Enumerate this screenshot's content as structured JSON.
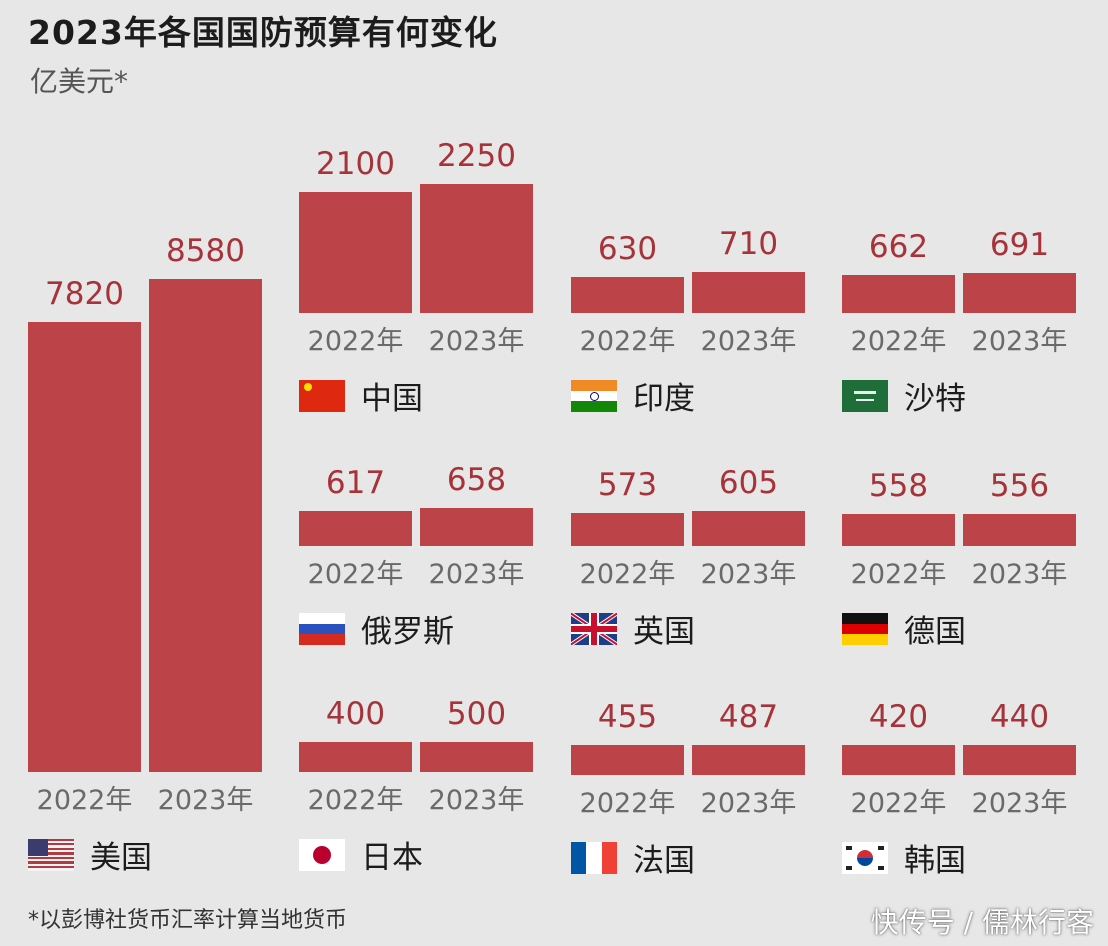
{
  "chart_data": {
    "type": "bar",
    "title": "2023年各国国防预算有何变化",
    "unit": "亿美元*",
    "footnote": "*以彭博社货币汇率计算当地货币",
    "watermark": "快传号 / 儒林行客",
    "bar_color": "#bc4448",
    "categories": [
      "2022年",
      "2023年"
    ],
    "series": [
      {
        "name": "美国",
        "flag": "us-flag",
        "values": [
          7820,
          8580
        ],
        "labels": [
          "7820",
          "8580"
        ]
      },
      {
        "name": "中国",
        "flag": "china-flag",
        "values": [
          2100,
          2250
        ],
        "labels": [
          "2100",
          "2250"
        ]
      },
      {
        "name": "印度",
        "flag": "india-flag",
        "values": [
          630,
          710
        ],
        "labels": [
          "630",
          "710"
        ]
      },
      {
        "name": "沙特",
        "flag": "saudi-flag",
        "values": [
          662,
          691
        ],
        "labels": [
          "662",
          "691"
        ]
      },
      {
        "name": "俄罗斯",
        "flag": "russia-flag",
        "values": [
          617,
          658
        ],
        "labels": [
          "617",
          "658"
        ]
      },
      {
        "name": "英国",
        "flag": "uk-flag",
        "values": [
          573,
          605
        ],
        "labels": [
          "573",
          "605"
        ]
      },
      {
        "name": "德国",
        "flag": "germany-flag",
        "values": [
          558,
          556
        ],
        "labels": [
          "558",
          "556"
        ]
      },
      {
        "name": "日本",
        "flag": "japan-flag",
        "values": [
          400,
          500
        ],
        "labels": [
          "400",
          "500"
        ]
      },
      {
        "name": "法国",
        "flag": "france-flag",
        "values": [
          455,
          487
        ],
        "labels": [
          "455",
          "487"
        ]
      },
      {
        "name": "韩国",
        "flag": "korea-flag",
        "values": [
          420,
          440
        ],
        "labels": [
          "420",
          "440"
        ]
      }
    ]
  }
}
